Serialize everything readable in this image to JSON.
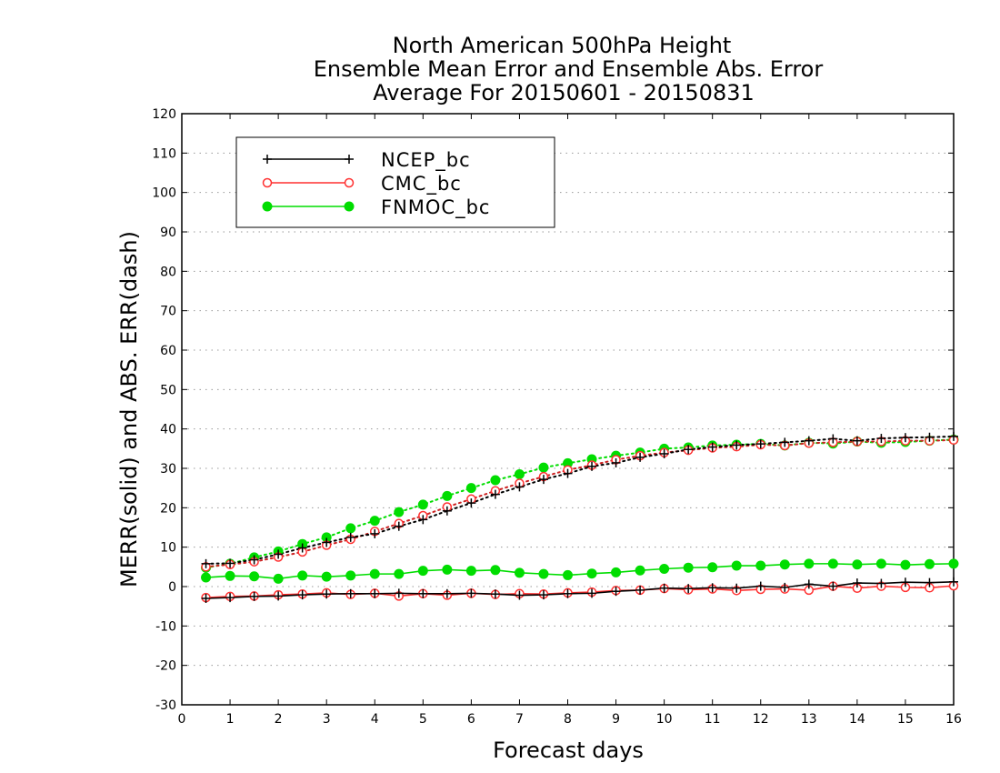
{
  "chart_data": {
    "type": "line",
    "title": [
      "North American 500hPa Height",
      "Ensemble Mean Error and Ensemble Abs. Error",
      "Average For 20150601 - 20150831"
    ],
    "xlabel": "Forecast days",
    "ylabel": "MERR(solid) and ABS. ERR(dash)",
    "xlim": [
      0,
      16
    ],
    "ylim": [
      -30,
      120
    ],
    "xticks": [
      0,
      1,
      2,
      3,
      4,
      5,
      6,
      7,
      8,
      9,
      10,
      11,
      12,
      13,
      14,
      15,
      16
    ],
    "yticks": [
      -30,
      -20,
      -10,
      0,
      10,
      20,
      30,
      40,
      50,
      60,
      70,
      80,
      90,
      100,
      110,
      120
    ],
    "grid": "horizontal dotted",
    "legend_position": "top-left",
    "x": [
      0.5,
      1,
      1.5,
      2,
      2.5,
      3,
      3.5,
      4,
      4.5,
      5,
      5.5,
      6,
      6.5,
      7,
      7.5,
      8,
      8.5,
      9,
      9.5,
      10,
      10.5,
      11,
      11.5,
      12,
      12.5,
      13,
      13.5,
      14,
      14.5,
      15,
      15.5,
      16
    ],
    "series": [
      {
        "name": "NCEP_bc",
        "color": "#000000",
        "marker": "plus",
        "merr": [
          -3,
          -2.8,
          -2.5,
          -2.4,
          -2.1,
          -1.9,
          -1.8,
          -1.8,
          -1.7,
          -1.8,
          -1.8,
          -1.7,
          -1.9,
          -2.2,
          -2.1,
          -1.8,
          -1.7,
          -1.2,
          -0.9,
          -0.4,
          -0.5,
          -0.3,
          -0.4,
          0.1,
          -0.2,
          0.6,
          0.1,
          0.9,
          0.8,
          1.1,
          1.0,
          1.2
        ],
        "abs_err": [
          5.8,
          5.9,
          6.8,
          8.2,
          9.8,
          11.2,
          12.5,
          13.4,
          15.3,
          17.0,
          19.2,
          21.2,
          23.4,
          25.3,
          27.2,
          28.7,
          30.5,
          31.4,
          32.8,
          33.7,
          34.8,
          35.4,
          35.9,
          36.2,
          36.6,
          37.0,
          37.5,
          37.0,
          37.6,
          37.8,
          37.9,
          38.1
        ]
      },
      {
        "name": "CMC_bc",
        "color": "#ff3030",
        "marker": "open-circle",
        "merr": [
          -2.8,
          -2.5,
          -2.4,
          -2.1,
          -1.9,
          -1.6,
          -2.0,
          -1.7,
          -2.4,
          -1.8,
          -2.2,
          -1.7,
          -2.0,
          -1.8,
          -1.9,
          -1.6,
          -1.4,
          -1.0,
          -0.9,
          -0.5,
          -0.8,
          -0.6,
          -1.0,
          -0.7,
          -0.6,
          -0.9,
          0.1,
          -0.4,
          0.1,
          -0.2,
          -0.3,
          0.2
        ],
        "abs_err": [
          5.0,
          5.6,
          6.3,
          7.5,
          8.8,
          10.5,
          12.0,
          14.0,
          16.0,
          18.0,
          20.2,
          22.2,
          24.3,
          26.2,
          27.9,
          29.6,
          30.8,
          32.2,
          33.2,
          34.0,
          34.6,
          35.2,
          35.5,
          36.0,
          35.8,
          36.4,
          36.6,
          36.8,
          36.8,
          37.0,
          37.0,
          37.2
        ]
      },
      {
        "name": "FNMOC_bc",
        "color": "#00dd00",
        "marker": "filled-circle",
        "merr": [
          2.3,
          2.7,
          2.6,
          2.0,
          2.8,
          2.5,
          2.8,
          3.2,
          3.2,
          4.0,
          4.3,
          4.0,
          4.2,
          3.5,
          3.2,
          2.9,
          3.3,
          3.6,
          4.1,
          4.5,
          4.8,
          4.9,
          5.3,
          5.3,
          5.6,
          5.8,
          5.8,
          5.6,
          5.8,
          5.5,
          5.7,
          5.8
        ],
        "abs_err": [
          4.8,
          5.8,
          7.4,
          8.9,
          10.8,
          12.5,
          14.8,
          16.7,
          18.9,
          20.8,
          23.0,
          25.0,
          27.0,
          28.5,
          30.2,
          31.3,
          32.3,
          33.2,
          34.0,
          35.0,
          35.3,
          35.8,
          36.0,
          36.2,
          35.8,
          36.5,
          36.3,
          36.8,
          36.5,
          36.7,
          37.0,
          37.3
        ]
      }
    ]
  }
}
